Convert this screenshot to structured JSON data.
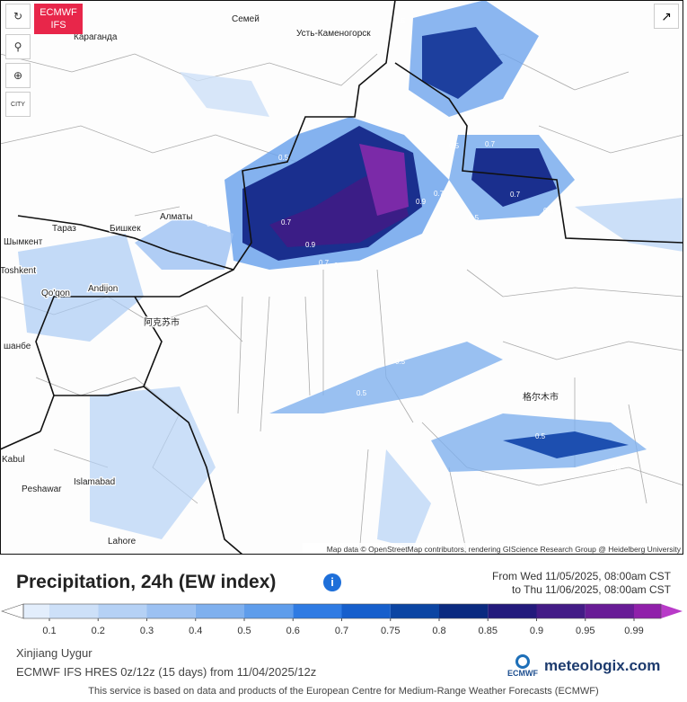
{
  "badge": {
    "line1": "ECMWF",
    "line2": "IFS"
  },
  "controls": {
    "city": "CITY"
  },
  "cities": [
    "Караганда",
    "Семей",
    "Усть-Каменогорск",
    "Тараз",
    "Бишкек",
    "Алматы",
    "Шымкент",
    "Toshkent",
    "Andijon",
    "Qo'qon",
    "шанбе",
    "Kabul",
    "Peshawar",
    "Islamabad",
    "Lahore",
    "阿克苏市",
    "格尔木市"
  ],
  "contour_labels": [
    "0.5",
    "0.5",
    "0.5",
    "0.7",
    "0.7",
    "0.9",
    "0.7",
    "0.5",
    "0.7",
    "0.9",
    "0.7",
    "0.5",
    "0.7",
    "0.5",
    "0.5",
    "0.5",
    "0.5",
    "0.5",
    "0.5",
    "0.5"
  ],
  "attribution": "Map data © OpenStreetMap contributors, rendering GIScience Research Group @ Heidelberg University",
  "legend": {
    "title": "Precipitation, 24h (EW index)",
    "from": "From Wed 11/05/2025, 08:00am CST",
    "to": "to Thu 11/06/2025, 08:00am CST",
    "ticks": [
      "0.1",
      "0.2",
      "0.3",
      "0.4",
      "0.5",
      "0.6",
      "0.7",
      "0.75",
      "0.8",
      "0.85",
      "0.9",
      "0.95",
      "0.99"
    ],
    "colors": [
      "#e3eefc",
      "#cde0f8",
      "#b5d1f5",
      "#9cc1f2",
      "#7fb0ee",
      "#5f9deb",
      "#2f7be3",
      "#165fcc",
      "#0b45a3",
      "#0a2a80",
      "#231a7c",
      "#431b86",
      "#681c96",
      "#9020aa"
    ]
  },
  "footer": {
    "region": "Xinjiang Uygur",
    "model": "ECMWF IFS HRES 0z/12z  (15 days)  from 11/04/2025/12z",
    "brand": "meteologix.com",
    "ecmwf": "ECMWF",
    "notice": "This service is based on data and products of the European Centre for Medium-Range Weather Forecasts (ECMWF)"
  }
}
